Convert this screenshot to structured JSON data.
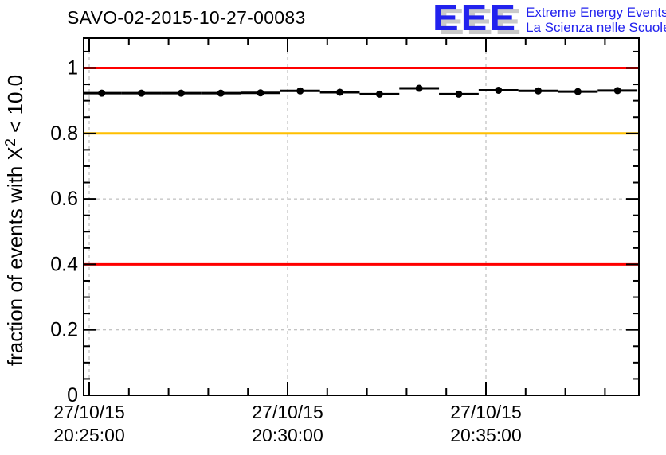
{
  "page": {
    "background": "#ffffff"
  },
  "header": {
    "title": "SAVO-02-2015-10-27-00083",
    "logo": {
      "letters": "EEE",
      "line1": "Extreme Energy Events",
      "line2": "La Scienza nelle Scuole",
      "color": "#2222ee",
      "shadow_color": "#c9c9c9"
    }
  },
  "chart_data": {
    "type": "scatter",
    "title": "SAVO-02-2015-10-27-00083",
    "ylabel": "fraction of events with X² < 10.0",
    "ylabel_parts": {
      "before_sup": "fraction of events with X",
      "sup": "2",
      "after_sup": " < 10.0"
    },
    "date": "27/10/15",
    "x": [
      "20:25:19",
      "20:26:19",
      "20:27:19",
      "20:28:19",
      "20:29:19",
      "20:30:19",
      "20:31:19",
      "20:32:19",
      "20:33:19",
      "20:34:19",
      "20:35:19",
      "20:36:19",
      "20:37:19",
      "20:38:19"
    ],
    "values": [
      0.923,
      0.923,
      0.923,
      0.923,
      0.924,
      0.93,
      0.926,
      0.92,
      0.938,
      0.92,
      0.932,
      0.93,
      0.928,
      0.931
    ],
    "xerr_seconds": 30,
    "yerr": 0.006,
    "marker": {
      "shape": "filled-circle",
      "color": "#000000"
    },
    "xlim": [
      "20:24:51",
      "20:38:53"
    ],
    "ylim": [
      0,
      1.091
    ],
    "x_major_ticks": [
      {
        "date": "27/10/15",
        "time": "20:25:00"
      },
      {
        "date": "27/10/15",
        "time": "20:30:00"
      },
      {
        "date": "27/10/15",
        "time": "20:35:00"
      }
    ],
    "x_minor_tick_times": [
      "20:26:00",
      "20:27:00",
      "20:28:00",
      "20:29:00",
      "20:31:00",
      "20:32:00",
      "20:33:00",
      "20:34:00",
      "20:36:00",
      "20:37:00",
      "20:38:00"
    ],
    "y_major_ticks": [
      0,
      0.2,
      0.4,
      0.6,
      0.8,
      1
    ],
    "y_major_tick_labels": [
      "0",
      "0.2",
      "0.4",
      "0.6",
      "0.8",
      "1"
    ],
    "y_minor_step": 0.05,
    "reference_lines": [
      {
        "y": 1.0,
        "color": "#ff0000"
      },
      {
        "y": 0.8,
        "color": "#ffbf00"
      },
      {
        "y": 0.4,
        "color": "#ff0000"
      }
    ],
    "grid": {
      "show": true,
      "style": "dashed",
      "color": "#b0b0b0",
      "on_major_ticks_only": true
    },
    "legend": {
      "show": false
    }
  }
}
